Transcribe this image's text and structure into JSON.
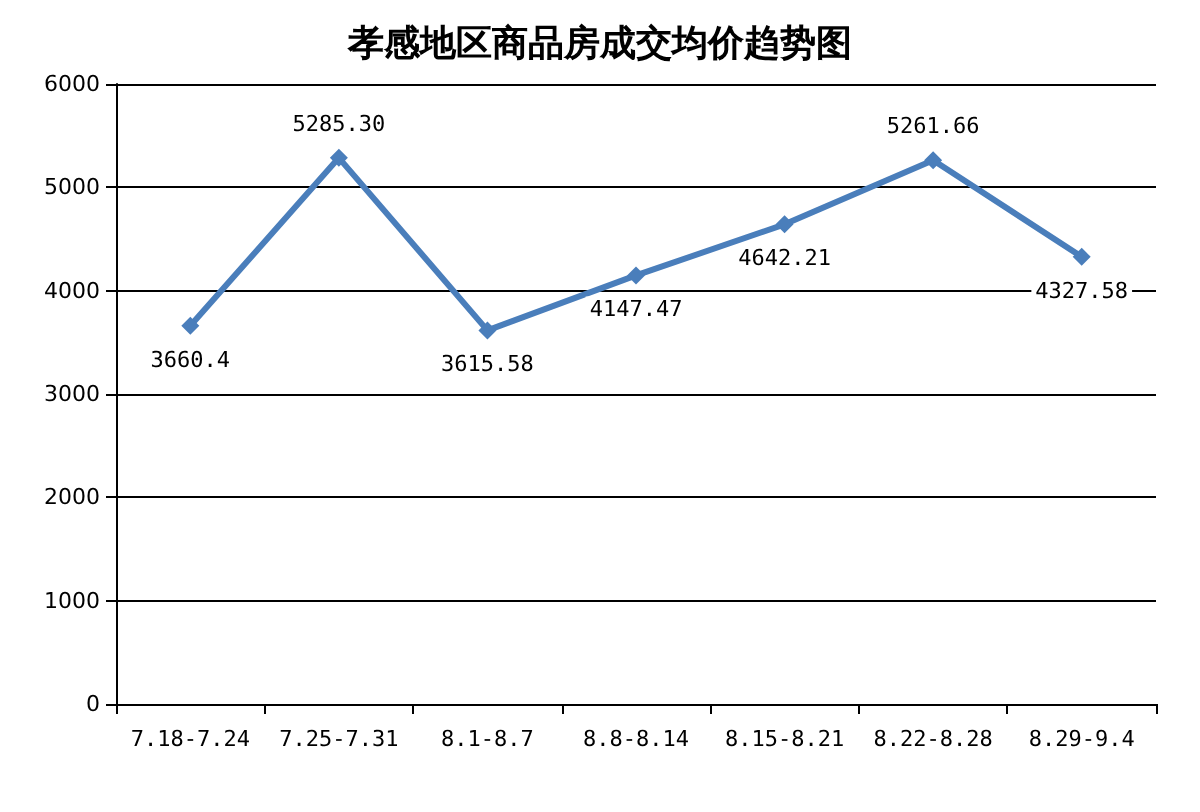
{
  "chart_data": {
    "type": "line",
    "title": "孝感地区商品房成交均价趋势图",
    "categories": [
      "7.18-7.24",
      "7.25-7.31",
      "8.1-8.7",
      "8.8-8.14",
      "8.15-8.21",
      "8.22-8.28",
      "8.29-9.4"
    ],
    "series": [
      {
        "color": "#4a7ebb",
        "values": [
          3660.4,
          5285.3,
          3615.58,
          4147.47,
          4642.21,
          5261.66,
          4327.58
        ],
        "value_labels": [
          "3660.4",
          "5285.30",
          "3615.58",
          "4147.47",
          "4642.21",
          "5261.66",
          "4327.58"
        ]
      }
    ],
    "ylim": [
      0,
      6000
    ],
    "yticks": [
      0,
      1000,
      2000,
      3000,
      4000,
      5000,
      6000
    ],
    "grid": "y",
    "marker": "diamond",
    "line_style": "solid"
  }
}
